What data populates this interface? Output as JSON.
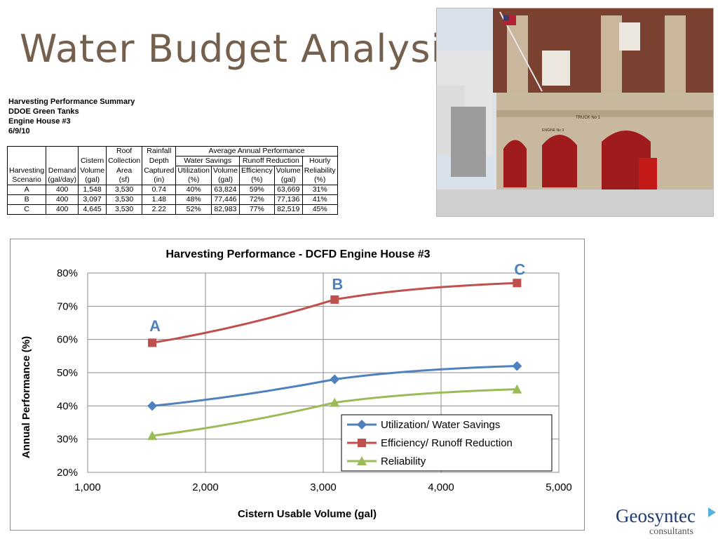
{
  "slide": {
    "title": "Water Budget Analysis"
  },
  "summary": {
    "lines": [
      "Harvesting Performance Summary",
      "DDOE Green Tanks",
      "Engine House #3",
      "6/9/10"
    ]
  },
  "table": {
    "group_header": "Average Annual Performance",
    "sub_groups": [
      "Water Savings",
      "Runoff Reduction"
    ],
    "headers": {
      "scenario": [
        "Harvesting",
        "Scenario"
      ],
      "demand": [
        "Demand",
        "(gal/day)"
      ],
      "cistern": [
        "Cistern",
        "Volume",
        "(gal)"
      ],
      "roof": [
        "Roof",
        "Collection",
        "Area",
        "(sf)"
      ],
      "rainfall": [
        "Rainfall",
        "Depth",
        "Captured",
        "(in)"
      ],
      "utilization": [
        "Utilization",
        "(%)"
      ],
      "ws_volume": [
        "Volume",
        "(gal)"
      ],
      "efficiency": [
        "Efficiency",
        "(%)"
      ],
      "rr_volume": [
        "Volume",
        "(gal)"
      ],
      "reliability": [
        "Hourly",
        "Reliability",
        "(%)"
      ]
    },
    "rows": [
      [
        "A",
        "400",
        "1,548",
        "3,530",
        "0.74",
        "40%",
        "63,824",
        "59%",
        "63,669",
        "31%"
      ],
      [
        "B",
        "400",
        "3,097",
        "3,530",
        "1.48",
        "48%",
        "77,446",
        "72%",
        "77,136",
        "41%"
      ],
      [
        "C",
        "400",
        "4,645",
        "3,530",
        "2.22",
        "52%",
        "82,983",
        "77%",
        "82,519",
        "45%"
      ]
    ]
  },
  "photo": {
    "sign_text": "TRUCK No 1",
    "door_text": "ENGINE No 3"
  },
  "chart_data": {
    "type": "line",
    "title": "Harvesting Performance - DCFD Engine House #3",
    "xlabel": "Cistern Usable Volume (gal)",
    "ylabel": "Annual Performance (%)",
    "xlim": [
      1000,
      5000
    ],
    "ylim": [
      20,
      80
    ],
    "x_ticks": [
      1000,
      2000,
      3000,
      4000,
      5000
    ],
    "x_tick_labels": [
      "1,000",
      "2,000",
      "3,000",
      "4,000",
      "5,000"
    ],
    "y_ticks": [
      20,
      30,
      40,
      50,
      60,
      70,
      80
    ],
    "y_tick_labels": [
      "20%",
      "30%",
      "40%",
      "50%",
      "60%",
      "70%",
      "80%"
    ],
    "grid": true,
    "legend_position": "bottom-right",
    "x": [
      1548,
      3097,
      4645
    ],
    "series": [
      {
        "name": "Utilization/ Water Savings",
        "values": [
          40,
          48,
          52
        ],
        "color": "#4f81bd",
        "marker": "diamond"
      },
      {
        "name": "Efficiency/ Runoff Reduction",
        "values": [
          59,
          72,
          77
        ],
        "color": "#c0504d",
        "marker": "square"
      },
      {
        "name": "Reliability",
        "values": [
          31,
          41,
          45
        ],
        "color": "#9bbb59",
        "marker": "triangle"
      }
    ],
    "annotations": [
      {
        "text": "A",
        "x": 1548,
        "y": 62.5
      },
      {
        "text": "B",
        "x": 3097,
        "y": 75
      },
      {
        "text": "C",
        "x": 4645,
        "y": 79.5
      }
    ],
    "annotation_color": "#4f81bd"
  },
  "logo": {
    "name": "Geosyntec",
    "sub": "consultants",
    "accent": "#5ab1d9"
  }
}
